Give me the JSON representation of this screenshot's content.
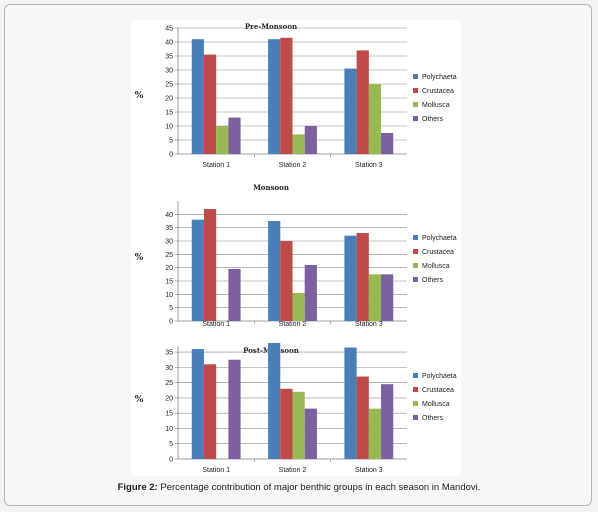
{
  "caption": {
    "label": "Figure 2:",
    "text": " Percentage contribution of major benthic groups in each season in Mandovi."
  },
  "colors": {
    "Polychaeta": "#4a7ebb",
    "Crustacea": "#be4b48",
    "Mollusca": "#98b954",
    "Others": "#7d60a0"
  },
  "chart_data": [
    {
      "type": "bar",
      "title": "Pre-Monsoon",
      "ylabel": "%",
      "categories": [
        "Station 1",
        "Station 2",
        "Station 3"
      ],
      "ylim": [
        0,
        45
      ],
      "yticks": [
        0,
        5,
        10,
        15,
        20,
        25,
        30,
        35,
        40,
        45
      ],
      "grid": true,
      "legend": "right",
      "series": [
        {
          "name": "Polychaeta",
          "values": [
            41,
            41,
            30.5
          ]
        },
        {
          "name": "Crustacea",
          "values": [
            35.5,
            41.5,
            37
          ]
        },
        {
          "name": "Mollusca",
          "values": [
            10,
            7,
            25
          ]
        },
        {
          "name": "Others",
          "values": [
            13,
            10,
            7.5
          ]
        }
      ]
    },
    {
      "type": "bar",
      "title": "Monsoon",
      "ylabel": "%",
      "categories": [
        "Station 1",
        "Station 2",
        "Station 3"
      ],
      "ylim": [
        0,
        45
      ],
      "yticks": [
        0,
        5,
        10,
        15,
        20,
        25,
        30,
        35,
        40
      ],
      "grid": true,
      "legend": "right",
      "series": [
        {
          "name": "Polychaeta",
          "values": [
            38,
            37.5,
            32
          ]
        },
        {
          "name": "Crustacea",
          "values": [
            42,
            30,
            33
          ]
        },
        {
          "name": "Mollusca",
          "values": [
            0,
            10.5,
            17.5
          ]
        },
        {
          "name": "Others",
          "values": [
            19.5,
            21,
            17.5
          ]
        }
      ]
    },
    {
      "type": "bar",
      "title": "Post-Monsoon",
      "ylabel": "%",
      "categories": [
        "Station 1",
        "Station 2",
        "Station 3"
      ],
      "ylim": [
        0,
        37
      ],
      "yticks": [
        0,
        5,
        10,
        15,
        20,
        25,
        30,
        35
      ],
      "grid": true,
      "legend": "right",
      "series": [
        {
          "name": "Polychaeta",
          "values": [
            36,
            38,
            36.5
          ]
        },
        {
          "name": "Crustacea",
          "values": [
            31,
            23,
            27
          ]
        },
        {
          "name": "Mollusca",
          "values": [
            0,
            22,
            16.5
          ]
        },
        {
          "name": "Others",
          "values": [
            32.5,
            16.5,
            24.5
          ]
        }
      ]
    }
  ]
}
